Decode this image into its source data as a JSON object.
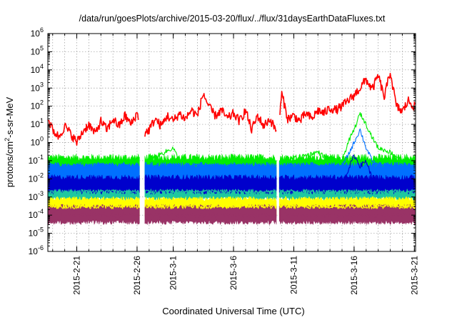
{
  "chart_data": {
    "type": "line",
    "title": "/data/run/goesPlots/archive/2015-03-20/flux/../flux/31daysEarthDataFluxes.txt",
    "xlabel": "Coordinated Universal Time (UTC)",
    "ylabel": "protons/cm2-sr-s-MeV",
    "ylabel_parts": {
      "pre": "protons/cm",
      "sup": "2",
      "post": "-s-sr-MeV"
    },
    "yscale": "log",
    "ylim_exp": [
      -6,
      6
    ],
    "y_tick_labels": [
      {
        "base": "10",
        "exp": "-6"
      },
      {
        "base": "10",
        "exp": "-5"
      },
      {
        "base": "10",
        "exp": "-4"
      },
      {
        "base": "10",
        "exp": "-3"
      },
      {
        "base": "10",
        "exp": "-2"
      },
      {
        "base": "10",
        "exp": "-1"
      },
      {
        "base": "10",
        "exp": "0"
      },
      {
        "base": "10",
        "exp": "1"
      },
      {
        "base": "10",
        "exp": "2"
      },
      {
        "base": "10",
        "exp": "3"
      },
      {
        "base": "10",
        "exp": "4"
      },
      {
        "base": "10",
        "exp": "5"
      },
      {
        "base": "10",
        "exp": "6"
      }
    ],
    "x_range_days": [
      -2.4,
      28.1
    ],
    "x_ticks": [
      {
        "label": "2015-2-21",
        "day": 0
      },
      {
        "label": "2015-2-26",
        "day": 5
      },
      {
        "label": "2015-3-1",
        "day": 8
      },
      {
        "label": "2015-3-6",
        "day": 13
      },
      {
        "label": "2015-3-11",
        "day": 18
      },
      {
        "label": "2015-3-16",
        "day": 23
      },
      {
        "label": "2015-3-21",
        "day": 28
      }
    ],
    "grid": true,
    "gaps_days": [
      [
        5.2,
        5.6
      ],
      [
        16.6,
        16.8
      ]
    ],
    "series": [
      {
        "color": "#ff0000",
        "points": [
          [
            -2.4,
            20
          ],
          [
            -2,
            5
          ],
          [
            -1.5,
            2
          ],
          [
            -1,
            8
          ],
          [
            -0.5,
            3
          ],
          [
            0,
            1
          ],
          [
            0.5,
            4
          ],
          [
            1,
            10
          ],
          [
            1.5,
            3
          ],
          [
            2,
            15
          ],
          [
            2.5,
            5
          ],
          [
            3,
            20
          ],
          [
            3.5,
            8
          ],
          [
            4,
            30
          ],
          [
            4.5,
            10
          ],
          [
            5,
            40
          ],
          [
            5.6,
            3
          ],
          [
            6,
            5
          ],
          [
            6.5,
            20
          ],
          [
            7,
            8
          ],
          [
            7.5,
            30
          ],
          [
            8,
            15
          ],
          [
            8.5,
            40
          ],
          [
            9,
            20
          ],
          [
            9.5,
            60
          ],
          [
            10,
            30
          ],
          [
            10.5,
            500
          ],
          [
            11,
            80
          ],
          [
            11.5,
            30
          ],
          [
            12,
            60
          ],
          [
            12.5,
            20
          ],
          [
            13,
            40
          ],
          [
            13.5,
            15
          ],
          [
            14,
            60
          ],
          [
            14.5,
            5
          ],
          [
            15,
            30
          ],
          [
            15.5,
            8
          ],
          [
            16,
            20
          ],
          [
            16.5,
            5
          ],
          [
            16.8,
            15
          ],
          [
            17,
            500
          ],
          [
            17.5,
            20
          ],
          [
            18,
            30
          ],
          [
            18.5,
            15
          ],
          [
            19,
            40
          ],
          [
            19.5,
            20
          ],
          [
            20,
            60
          ],
          [
            20.5,
            40
          ],
          [
            21,
            80
          ],
          [
            21.5,
            60
          ],
          [
            22,
            100
          ],
          [
            22.5,
            200
          ],
          [
            23,
            400
          ],
          [
            23.5,
            1000
          ],
          [
            24,
            3000
          ],
          [
            24.5,
            800
          ],
          [
            25,
            5000
          ],
          [
            25.5,
            300
          ],
          [
            26,
            8000
          ],
          [
            26.5,
            100
          ],
          [
            27,
            50
          ],
          [
            27.5,
            200
          ],
          [
            28.1,
            80
          ]
        ]
      },
      {
        "color": "#00ee00",
        "points": [
          [
            -2.4,
            0.1
          ],
          [
            0,
            0.08
          ],
          [
            2,
            0.1
          ],
          [
            4,
            0.08
          ],
          [
            5,
            0.1
          ],
          [
            5.6,
            0.08
          ],
          [
            8,
            0.5
          ],
          [
            8.5,
            0.1
          ],
          [
            12,
            0.08
          ],
          [
            16,
            0.1
          ],
          [
            16.8,
            0.08
          ],
          [
            20,
            0.3
          ],
          [
            21,
            0.1
          ],
          [
            22,
            0.1
          ],
          [
            22.5,
            1
          ],
          [
            23,
            5
          ],
          [
            23.5,
            40
          ],
          [
            24,
            10
          ],
          [
            24.5,
            2
          ],
          [
            25,
            0.5
          ],
          [
            26,
            0.3
          ],
          [
            27,
            0.1
          ],
          [
            28.1,
            0.08
          ]
        ]
      },
      {
        "color": "#0070ff",
        "points": [
          [
            -2.4,
            0.05
          ],
          [
            2,
            0.05
          ],
          [
            5,
            0.05
          ],
          [
            5.6,
            0.05
          ],
          [
            10,
            0.05
          ],
          [
            16.8,
            0.05
          ],
          [
            22,
            0.05
          ],
          [
            22.5,
            0.2
          ],
          [
            23,
            1
          ],
          [
            23.5,
            5
          ],
          [
            24,
            0.5
          ],
          [
            24.5,
            0.1
          ],
          [
            25,
            0.05
          ],
          [
            28.1,
            0.05
          ]
        ]
      },
      {
        "color": "#0000cc",
        "points": [
          [
            -2.4,
            0.005
          ],
          [
            0,
            0.006
          ],
          [
            1,
            0.01
          ],
          [
            2,
            0.005
          ],
          [
            5,
            0.005
          ],
          [
            5.6,
            0.005
          ],
          [
            10,
            0.005
          ],
          [
            16.8,
            0.005
          ],
          [
            22,
            0.005
          ],
          [
            22.5,
            0.03
          ],
          [
            23,
            0.2
          ],
          [
            23.5,
            0.05
          ],
          [
            24,
            0.1
          ],
          [
            24.5,
            0.01
          ],
          [
            25,
            0.005
          ],
          [
            28.1,
            0.005
          ]
        ]
      },
      {
        "color": "#1ec8a0",
        "points": [
          [
            -2.4,
            0.002
          ],
          [
            5,
            0.002
          ],
          [
            5.6,
            0.002
          ],
          [
            16.8,
            0.002
          ],
          [
            28.1,
            0.002
          ]
        ]
      },
      {
        "color": "#ffff00",
        "points": [
          [
            -2.4,
            0.0003
          ],
          [
            5,
            0.0003
          ],
          [
            5.6,
            0.0003
          ],
          [
            16.8,
            0.0003
          ],
          [
            28.1,
            0.0003
          ]
        ]
      },
      {
        "color": "#993366",
        "points": [
          [
            -2.4,
            0.0001
          ],
          [
            5,
            0.0001
          ],
          [
            5.6,
            0.0001
          ],
          [
            16.8,
            0.0001
          ],
          [
            28.1,
            0.0001
          ]
        ]
      }
    ],
    "bands": [
      {
        "color": "#00ee00",
        "lo": 0.004,
        "hi": 0.15,
        "noise": 0.2
      },
      {
        "color": "#0070ff",
        "lo": 0.004,
        "hi": 0.06,
        "noise": 0.15
      },
      {
        "color": "#1ec8a0",
        "lo": 0.0008,
        "hi": 0.004,
        "noise": 0.12
      },
      {
        "color": "#0000cc",
        "lo": 0.002,
        "hi": 0.012,
        "noise": 0.15
      },
      {
        "color": "#ffff00",
        "lo": 0.0001,
        "hi": 0.0008,
        "noise": 0.12
      },
      {
        "color": "#993366",
        "lo": 4e-05,
        "hi": 0.0003,
        "noise": 0.12
      }
    ]
  }
}
